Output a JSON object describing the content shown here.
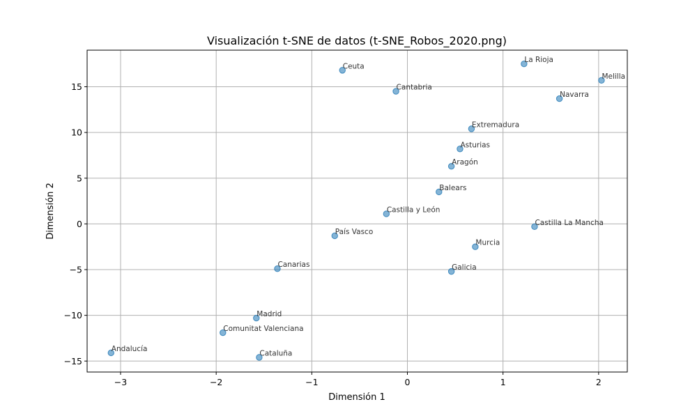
{
  "chart_data": {
    "type": "scatter",
    "title": "Visualización t-SNE de datos (t-SNE_Robos_2020.png)",
    "xlabel": "Dimensión 1",
    "ylabel": "Dimensión 2",
    "xlim": [
      -3.35,
      2.3
    ],
    "ylim": [
      -16.2,
      19.0
    ],
    "xticks": [
      -3,
      -2,
      -1,
      0,
      1,
      2
    ],
    "xtick_labels": [
      "−3",
      "−2",
      "−1",
      "0",
      "1",
      "2"
    ],
    "yticks": [
      -15,
      -10,
      -5,
      0,
      5,
      10,
      15
    ],
    "ytick_labels": [
      "−15",
      "−10",
      "−5",
      "0",
      "5",
      "10",
      "15"
    ],
    "grid": true,
    "marker_color": "#1f77b4",
    "points": [
      {
        "label": "Ceuta",
        "x": -0.68,
        "y": 16.8
      },
      {
        "label": "Cantabria",
        "x": -0.12,
        "y": 14.5
      },
      {
        "label": "La Rioja",
        "x": 1.22,
        "y": 17.5
      },
      {
        "label": "Melilla",
        "x": 2.03,
        "y": 15.7
      },
      {
        "label": "Navarra",
        "x": 1.59,
        "y": 13.7
      },
      {
        "label": "Extremadura",
        "x": 0.67,
        "y": 10.4
      },
      {
        "label": "Asturias",
        "x": 0.55,
        "y": 8.2
      },
      {
        "label": "Aragón",
        "x": 0.46,
        "y": 6.3
      },
      {
        "label": "Balears",
        "x": 0.33,
        "y": 3.5
      },
      {
        "label": "Castilla y León",
        "x": -0.22,
        "y": 1.1
      },
      {
        "label": "Castilla La Mancha",
        "x": 1.33,
        "y": -0.3
      },
      {
        "label": "País Vasco",
        "x": -0.76,
        "y": -1.3
      },
      {
        "label": "Murcia",
        "x": 0.71,
        "y": -2.5
      },
      {
        "label": "Canarias",
        "x": -1.36,
        "y": -4.9
      },
      {
        "label": "Galicia",
        "x": 0.46,
        "y": -5.2
      },
      {
        "label": "Madrid",
        "x": -1.58,
        "y": -10.3
      },
      {
        "label": "Comunitat Valenciana",
        "x": -1.93,
        "y": -11.9
      },
      {
        "label": "Andalucía",
        "x": -3.1,
        "y": -14.1
      },
      {
        "label": "Cataluña",
        "x": -1.55,
        "y": -14.6
      }
    ]
  }
}
